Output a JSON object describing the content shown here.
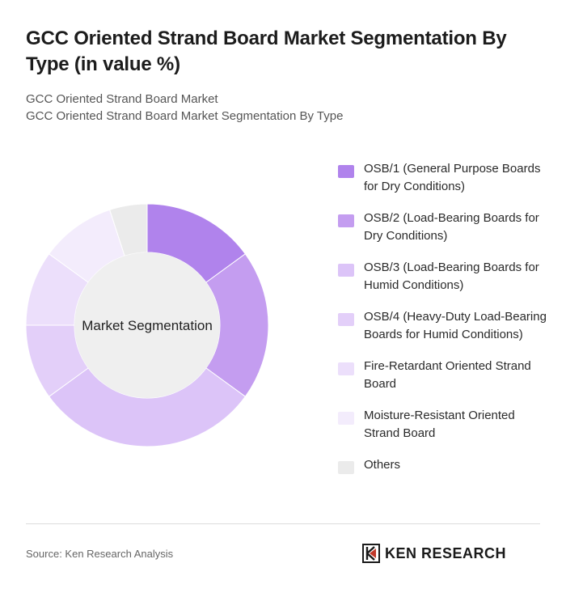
{
  "header": {
    "title": "GCC Oriented Strand Board Market Segmentation By Type (in value %)",
    "breadcrumb": [
      "GCC Oriented Strand Board Market",
      "GCC Oriented Strand Board Market Segmentation By Type"
    ]
  },
  "chart_data": {
    "type": "pie",
    "variant": "donut",
    "center_label": "Market Segmentation",
    "categories": [
      "OSB/1 (General Purpose Boards for Dry Conditions)",
      "OSB/2 (Load-Bearing Boards for Dry Conditions)",
      "OSB/3 (Load-Bearing Boards for Humid Conditions)",
      "OSB/4 (Heavy-Duty Load-Bearing Boards for Humid Conditions)",
      "Fire-Retardant Oriented Strand Board",
      "Moisture-Resistant Oriented Strand Board",
      "Others"
    ],
    "values": [
      15,
      20,
      30,
      10,
      10,
      10,
      5
    ],
    "colors": [
      "#b083ec",
      "#c49df0",
      "#dcc4f8",
      "#e3cff9",
      "#ecdffb",
      "#f3ecfc",
      "#ebebeb"
    ],
    "legend_position": "right"
  },
  "footer": {
    "source": "Source: Ken Research Analysis",
    "logo_text": "KEN RESEARCH"
  }
}
